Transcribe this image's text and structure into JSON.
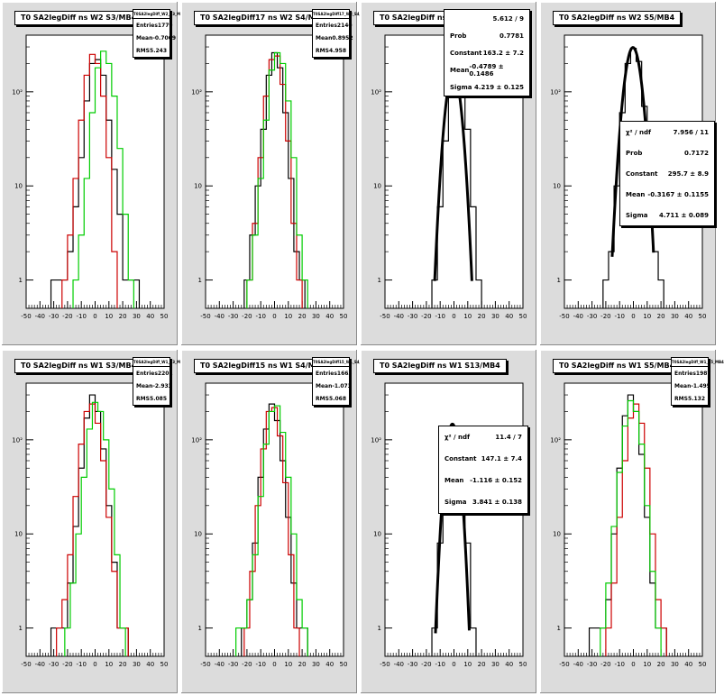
{
  "chart_data": [
    {
      "type": "histogram",
      "title": "T0 SA2legDiff ns W2 S3/MB4",
      "xlim": [
        -50,
        50
      ],
      "ylim": [
        0.5,
        400
      ],
      "log_y": true,
      "stats": {
        "header": "T0SA2legDiff_W2_S3_MB4",
        "rows": [
          [
            "Entries",
            "1779"
          ],
          [
            "Mean",
            "-0.7069"
          ],
          [
            "RMS",
            "5.243"
          ]
        ]
      },
      "series": [
        {
          "color": "#000000",
          "x": [
            -30,
            -26,
            -22,
            -18,
            -14,
            -10,
            -6,
            -2,
            2,
            6,
            10,
            14,
            18,
            22,
            26,
            30
          ],
          "y": [
            1,
            1,
            1,
            2,
            6,
            20,
            80,
            200,
            220,
            150,
            50,
            15,
            5,
            1,
            1,
            1
          ]
        },
        {
          "color": "#cc0000",
          "x": [
            -22,
            -18,
            -14,
            -10,
            -6,
            -2,
            2,
            6,
            10,
            14
          ],
          "y": [
            1,
            3,
            12,
            50,
            150,
            250,
            200,
            90,
            20,
            2
          ]
        },
        {
          "color": "#00cc00",
          "x": [
            -14,
            -10,
            -6,
            -2,
            2,
            6,
            10,
            14,
            18,
            22,
            26
          ],
          "y": [
            1,
            3,
            12,
            60,
            180,
            270,
            200,
            90,
            25,
            5,
            1
          ]
        }
      ]
    },
    {
      "type": "histogram",
      "title": "T0 SA2legDiff17 ns W2 S4/MB4",
      "xlim": [
        -50,
        50
      ],
      "ylim": [
        0.5,
        400
      ],
      "log_y": true,
      "stats": {
        "header": "T0SA2legDiff17_W2_S4_MB4",
        "rows": [
          [
            "Entries",
            "2140"
          ],
          [
            "Mean",
            "0.8952"
          ],
          [
            "RMS",
            "4.958"
          ]
        ]
      },
      "series": [
        {
          "color": "#000000",
          "x": [
            -20,
            -16,
            -12,
            -8,
            -4,
            0,
            4,
            8,
            12,
            16,
            20
          ],
          "y": [
            1,
            3,
            10,
            40,
            150,
            260,
            180,
            60,
            12,
            2,
            1
          ]
        },
        {
          "color": "#cc0000",
          "x": [
            -18,
            -14,
            -10,
            -6,
            -2,
            2,
            6,
            10,
            14,
            18
          ],
          "y": [
            1,
            4,
            20,
            90,
            220,
            240,
            120,
            30,
            4,
            1
          ]
        },
        {
          "color": "#00cc00",
          "x": [
            -18,
            -14,
            -10,
            -6,
            -2,
            2,
            6,
            10,
            14,
            18,
            22
          ],
          "y": [
            1,
            3,
            12,
            50,
            170,
            260,
            200,
            80,
            20,
            3,
            1
          ]
        }
      ]
    },
    {
      "type": "histogram",
      "title": "T0 SA2legDiff ns W2 S13/MB4",
      "xlim": [
        -50,
        50
      ],
      "ylim": [
        0.5,
        400
      ],
      "log_y": true,
      "fit": {
        "rows": [
          [
            "",
            "5.612 / 9"
          ],
          [
            "Prob",
            "0.7781"
          ],
          [
            "Constant",
            "163.2 ± 7.2"
          ],
          [
            "Mean",
            "-0.4789 ± 0.1486"
          ],
          [
            "Sigma",
            "4.219 ± 0.125"
          ]
        ]
      },
      "series": [
        {
          "color": "#000000",
          "x": [
            -14,
            -10,
            -6,
            -2,
            2,
            6,
            10,
            14,
            18
          ],
          "y": [
            1,
            6,
            30,
            120,
            160,
            120,
            40,
            6,
            1
          ]
        },
        {
          "color": "#000000",
          "fit": true,
          "gauss": {
            "constant": 163.2,
            "mean": -0.4789,
            "sigma": 4.219
          }
        }
      ]
    },
    {
      "type": "histogram",
      "title": "T0 SA2legDiff ns W2 S5/MB4",
      "xlim": [
        -50,
        50
      ],
      "ylim": [
        0.5,
        400
      ],
      "log_y": true,
      "fit": {
        "rows": [
          [
            "χ² / ndf",
            "7.956 / 11"
          ],
          [
            "Prob",
            "0.7172"
          ],
          [
            "Constant",
            "295.7 ± 8.9"
          ],
          [
            "Mean",
            "-0.3167 ± 0.1155"
          ],
          [
            "Sigma",
            "4.711 ± 0.089"
          ]
        ]
      },
      "series": [
        {
          "color": "#000000",
          "x": [
            -20,
            -16,
            -12,
            -8,
            -4,
            0,
            4,
            8,
            12,
            16,
            20
          ],
          "y": [
            1,
            2,
            10,
            60,
            200,
            290,
            210,
            70,
            10,
            2,
            1
          ]
        },
        {
          "color": "#000000",
          "fit": true,
          "gauss": {
            "constant": 295.7,
            "mean": -0.3167,
            "sigma": 4.711
          }
        }
      ]
    },
    {
      "type": "histogram",
      "title": "T0 SA2legDiff ns W1 S3/MB4",
      "xlim": [
        -50,
        50
      ],
      "ylim": [
        0.5,
        400
      ],
      "log_y": true,
      "stats": {
        "header": "T0SA2legDiff_W1_S3_MB4",
        "rows": [
          [
            "Entries",
            "2201"
          ],
          [
            "Mean",
            "-2.933"
          ],
          [
            "RMS",
            "5.085"
          ]
        ]
      },
      "series": [
        {
          "color": "#000000",
          "x": [
            -30,
            -26,
            -22,
            -18,
            -14,
            -10,
            -6,
            -2,
            2,
            6,
            10,
            14,
            18,
            22
          ],
          "y": [
            1,
            1,
            1,
            3,
            12,
            50,
            170,
            300,
            200,
            80,
            20,
            5,
            1,
            1
          ]
        },
        {
          "color": "#cc0000",
          "x": [
            -26,
            -22,
            -18,
            -14,
            -10,
            -6,
            -2,
            2,
            6,
            10,
            14,
            18,
            22
          ],
          "y": [
            1,
            2,
            6,
            25,
            90,
            200,
            240,
            150,
            60,
            15,
            4,
            1,
            1
          ]
        },
        {
          "color": "#00cc00",
          "x": [
            -20,
            -16,
            -12,
            -8,
            -4,
            0,
            4,
            8,
            12,
            16,
            20
          ],
          "y": [
            1,
            3,
            10,
            40,
            130,
            250,
            200,
            100,
            30,
            6,
            1
          ]
        }
      ]
    },
    {
      "type": "histogram",
      "title": "T0 SA2legDiff15 ns W1 S4/MB4",
      "xlim": [
        -50,
        50
      ],
      "ylim": [
        0.5,
        400
      ],
      "log_y": true,
      "stats": {
        "header": "T0SA2legDiff15_W1_S4_MB4",
        "rows": [
          [
            "Entries",
            "1663"
          ],
          [
            "Mean",
            "-1.073"
          ],
          [
            "RMS",
            "5.068"
          ]
        ]
      },
      "series": [
        {
          "color": "#000000",
          "x": [
            -22,
            -18,
            -14,
            -10,
            -6,
            -2,
            2,
            6,
            10,
            14,
            18,
            22
          ],
          "y": [
            1,
            2,
            8,
            40,
            130,
            240,
            160,
            60,
            15,
            3,
            1,
            1
          ]
        },
        {
          "color": "#cc0000",
          "x": [
            -20,
            -16,
            -12,
            -8,
            -4,
            0,
            4,
            8,
            12,
            16
          ],
          "y": [
            1,
            4,
            20,
            80,
            200,
            220,
            110,
            35,
            6,
            1
          ]
        },
        {
          "color": "#00cc00",
          "x": [
            -26,
            -22,
            -18,
            -14,
            -10,
            -6,
            -2,
            2,
            6,
            10,
            14,
            18,
            22
          ],
          "y": [
            1,
            1,
            2,
            6,
            25,
            90,
            200,
            230,
            120,
            40,
            10,
            2,
            1
          ]
        }
      ]
    },
    {
      "type": "histogram",
      "title": "T0 SA2legDiff ns W1 S13/MB4",
      "xlim": [
        -50,
        50
      ],
      "ylim": [
        0.5,
        400
      ],
      "log_y": true,
      "fit": {
        "rows": [
          [
            "χ² / ndf",
            "11.4 / 7"
          ],
          [
            "Constant",
            "147.1 ± 7.4"
          ],
          [
            "Mean",
            "-1.116 ± 0.152"
          ],
          [
            "Sigma",
            "3.841 ± 0.138"
          ]
        ]
      },
      "series": [
        {
          "color": "#000000",
          "x": [
            -14,
            -10,
            -6,
            -2,
            2,
            6,
            10,
            14
          ],
          "y": [
            1,
            8,
            40,
            140,
            130,
            50,
            8,
            1
          ]
        },
        {
          "color": "#000000",
          "fit": true,
          "gauss": {
            "constant": 147.1,
            "mean": -1.116,
            "sigma": 3.841
          }
        }
      ]
    },
    {
      "type": "histogram",
      "title": "T0 SA2legDiff ns W1 S5/MB4",
      "xlim": [
        -50,
        50
      ],
      "ylim": [
        0.5,
        400
      ],
      "log_y": true,
      "stats": {
        "header": "T0SA2legDiff_W1_S5_MB4",
        "rows": [
          [
            "Entries",
            "1987"
          ],
          [
            "Mean",
            "-1.495"
          ],
          [
            "RMS",
            "5.132"
          ]
        ]
      },
      "series": [
        {
          "color": "#000000",
          "x": [
            -30,
            -26,
            -22,
            -18,
            -14,
            -10,
            -6,
            -2,
            2,
            6,
            10,
            14,
            18,
            22
          ],
          "y": [
            1,
            1,
            1,
            2,
            10,
            50,
            180,
            300,
            200,
            70,
            15,
            3,
            1,
            1
          ]
        },
        {
          "color": "#cc0000",
          "x": [
            -18,
            -14,
            -10,
            -6,
            -2,
            2,
            6,
            10,
            14,
            18,
            22
          ],
          "y": [
            1,
            3,
            15,
            60,
            170,
            240,
            150,
            50,
            10,
            2,
            1
          ]
        },
        {
          "color": "#00cc00",
          "x": [
            -22,
            -18,
            -14,
            -10,
            -6,
            -2,
            2,
            6,
            10,
            14,
            18
          ],
          "y": [
            1,
            3,
            12,
            45,
            140,
            260,
            200,
            90,
            20,
            4,
            1
          ]
        }
      ]
    }
  ],
  "axis_ticks": {
    "x": [
      "-50",
      "-40",
      "-30",
      "-20",
      "-10",
      "0",
      "10",
      "20",
      "30",
      "40",
      "50"
    ],
    "y": [
      "1",
      "10",
      "10²"
    ]
  }
}
